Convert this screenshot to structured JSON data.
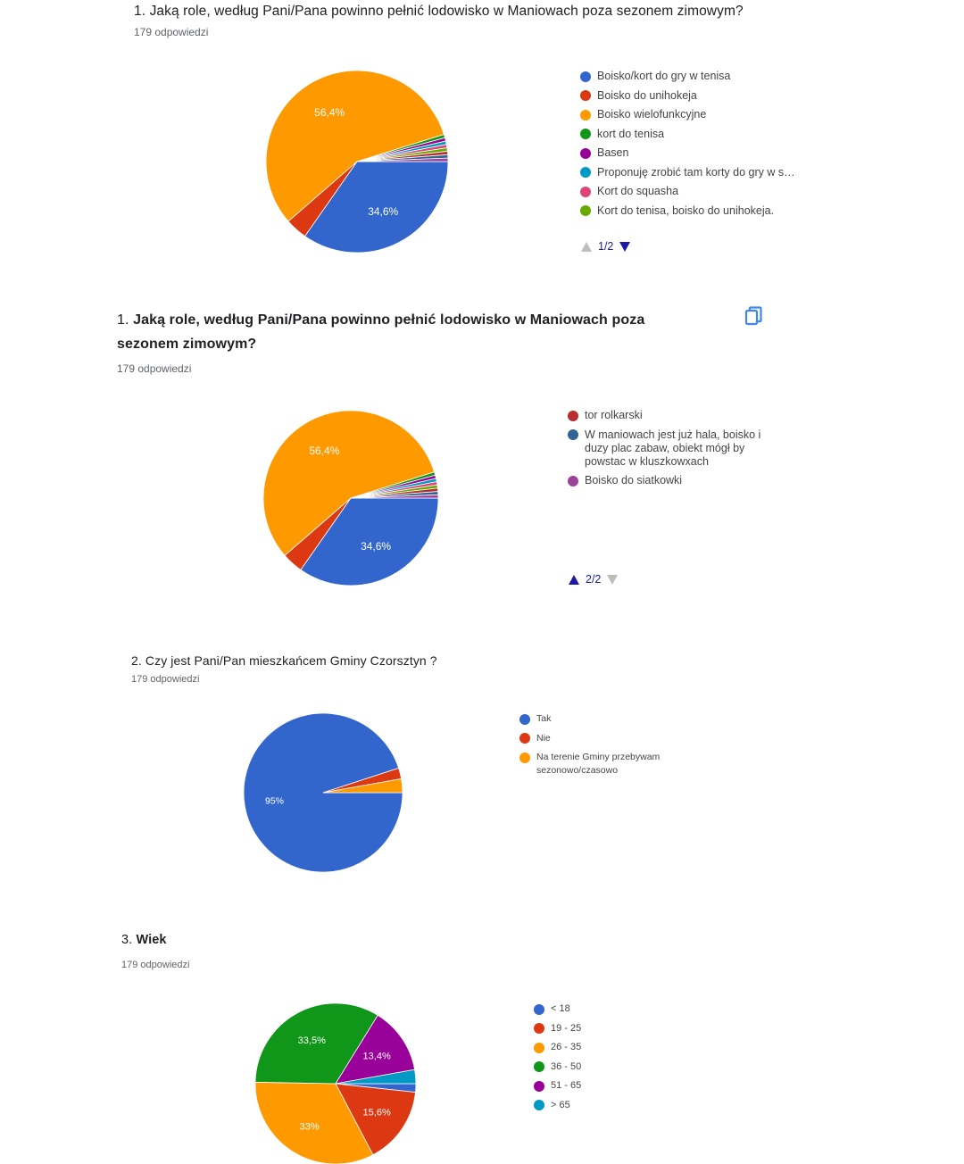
{
  "sections": [
    {
      "number": "1.",
      "title": "Jaką role, według Pani/Pana powinno pełnić lodowisko w Maniowach poza sezonem zimowym?",
      "count": "179 odpowiedzi",
      "legend": [
        "Boisko/kort do gry w tenisa",
        "Boisko do unihokeja",
        "Boisko wielofunkcyjne",
        "kort do tenisa",
        "Basen",
        "Proponuję zrobić tam korty do gry w s…",
        "Kort do squasha",
        "Kort do tenisa, boisko do unihokeja."
      ],
      "pager": "1/2"
    },
    {
      "number": "1.",
      "title": "Jaką role, według Pani/Pana powinno pełnić lodowisko w Maniowach poza sezonem zimowym?",
      "count": "179 odpowiedzi",
      "legend": [
        "tor rolkarski",
        "W maniowach jest już hala, boisko i duzy plac zabaw, obiekt mógł by powstac w kluszkowxach",
        "Boisko do siatkowki"
      ],
      "pager": "2/2"
    },
    {
      "number": "2.",
      "title": "Czy jest Pani/Pan mieszkańcem Gminy Czorsztyn ?",
      "count": "179 odpowiedzi",
      "legend": [
        "Tak",
        "Nie",
        "Na terenie Gminy przebywam sezonowo/czasowo"
      ]
    },
    {
      "number": "3.",
      "title": "Wiek",
      "count": "179 odpowiedzi",
      "legend": [
        "< 18",
        "19 - 25",
        "26 - 35",
        "36 - 50",
        "51 - 65",
        "> 65"
      ]
    }
  ],
  "chart_data": [
    {
      "type": "pie",
      "title": "1. Jaką role, według Pani/Pana powinno pełnić lodowisko w Maniowach poza sezonem zimowym?",
      "labels": [
        "Boisko/kort do gry w tenisa",
        "Boisko do unihokeja",
        "Boisko wielofunkcyjne",
        "kort do tenisa",
        "Basen",
        "Proponuję zrobić tam korty do gry w s…",
        "Kort do squasha",
        "Kort do tenisa, boisko do unihokeja.",
        "tor rolkarski",
        "W maniowach jest już hala, boisko i duzy plac zabaw, obiekt mógł by powstac w kluszkowxach",
        "Boisko do siatkowki"
      ],
      "values": [
        34.6,
        3.9,
        56.4,
        0.6,
        0.6,
        0.6,
        0.6,
        0.6,
        0.6,
        0.6,
        0.6
      ],
      "data_labels": [
        "34,6%",
        "",
        "56,4%",
        "",
        "",
        "",
        "",
        "",
        "",
        "",
        ""
      ],
      "colors": [
        "#3366cc",
        "#dc3912",
        "#ff9900",
        "#109618",
        "#990099",
        "#0099c6",
        "#dd4477",
        "#66aa00",
        "#b82e2e",
        "#316395",
        "#994499"
      ],
      "legend_position": "right"
    },
    {
      "type": "pie",
      "title": "2. Czy jest Pani/Pan mieszkańcem Gminy Czorsztyn ?",
      "labels": [
        "Tak",
        "Nie",
        "Na terenie Gminy przebywam sezonowo/czasowo"
      ],
      "values": [
        95,
        2.2,
        2.8
      ],
      "data_labels": [
        "95%",
        "",
        ""
      ],
      "colors": [
        "#3366cc",
        "#dc3912",
        "#ff9900"
      ],
      "legend_position": "right"
    },
    {
      "type": "pie",
      "title": "3. Wiek",
      "labels": [
        "< 18",
        "19 - 25",
        "26 - 35",
        "36 - 50",
        "51 - 65",
        "> 65"
      ],
      "values": [
        1.7,
        15.6,
        33,
        33.5,
        13.4,
        2.8
      ],
      "data_labels": [
        "",
        "15,6%",
        "33%",
        "33,5%",
        "13,4%",
        ""
      ],
      "colors": [
        "#3366cc",
        "#dc3912",
        "#ff9900",
        "#109618",
        "#990099",
        "#0099c6"
      ],
      "legend_position": "right"
    }
  ],
  "colors": {
    "pager_active": "#1a1aa6",
    "pager_disabled": "#bdbdbd",
    "copy_icon": "#4285f4"
  }
}
